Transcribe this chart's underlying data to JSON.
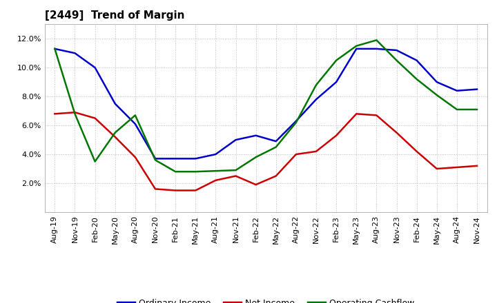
{
  "title": "[2449]  Trend of Margin",
  "x_labels": [
    "Aug-19",
    "Nov-19",
    "Feb-20",
    "May-20",
    "Aug-20",
    "Nov-20",
    "Feb-21",
    "May-21",
    "Aug-21",
    "Nov-21",
    "Feb-22",
    "May-22",
    "Aug-22",
    "Nov-22",
    "Feb-23",
    "May-23",
    "Aug-23",
    "Nov-23",
    "Feb-24",
    "May-24",
    "Aug-24",
    "Nov-24"
  ],
  "ordinary_income": [
    11.3,
    11.0,
    10.0,
    7.5,
    6.1,
    3.7,
    3.7,
    3.7,
    4.0,
    5.0,
    5.3,
    4.9,
    6.3,
    7.8,
    9.0,
    11.3,
    11.3,
    11.2,
    10.5,
    9.0,
    8.4,
    8.5
  ],
  "net_income": [
    6.8,
    6.9,
    6.5,
    5.2,
    3.8,
    1.6,
    1.5,
    1.5,
    2.2,
    2.5,
    1.9,
    2.5,
    4.0,
    4.2,
    5.3,
    6.8,
    6.7,
    5.5,
    4.2,
    3.0,
    3.1,
    3.2
  ],
  "operating_cashflow": [
    11.3,
    6.8,
    3.5,
    5.5,
    6.7,
    3.6,
    2.8,
    2.8,
    2.85,
    2.9,
    3.8,
    4.5,
    6.2,
    8.8,
    10.5,
    11.5,
    11.9,
    10.5,
    9.2,
    8.1,
    7.1,
    7.1
  ],
  "ylim": [
    0,
    13
  ],
  "yticks": [
    2.0,
    4.0,
    6.0,
    8.0,
    10.0,
    12.0
  ],
  "ytick_labels": [
    "2.0%",
    "4.0%",
    "6.0%",
    "8.0%",
    "10.0%",
    "12.0%"
  ],
  "line_colors": {
    "ordinary_income": "#0000cc",
    "net_income": "#cc0000",
    "operating_cashflow": "#007700"
  },
  "line_width": 1.8,
  "legend_labels": [
    "Ordinary Income",
    "Net Income",
    "Operating Cashflow"
  ],
  "background_color": "#ffffff",
  "plot_bg_color": "#ffffff",
  "grid_color": "#bbbbbb",
  "title_fontsize": 11,
  "tick_fontsize": 8,
  "legend_fontsize": 9
}
